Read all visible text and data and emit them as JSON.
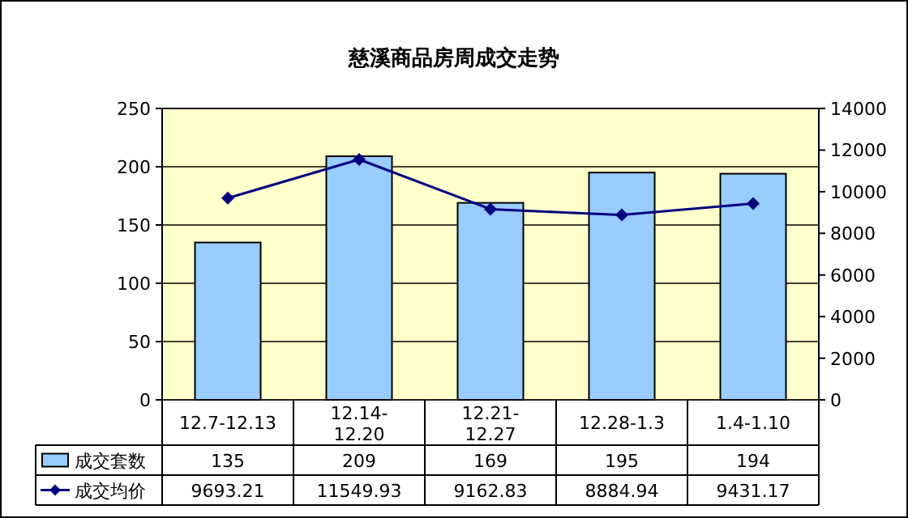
{
  "chart_data": {
    "type": "bar",
    "title": "慈溪商品房周成交走势",
    "categories": [
      "12.7-12.13",
      "12.14-12.20",
      "12.21-12.27",
      "12.28-1.3",
      "1.4-1.10"
    ],
    "series": [
      {
        "name": "成交套数",
        "color": "#99ccff",
        "values": [
          135,
          209,
          169,
          195,
          194
        ]
      },
      {
        "name": "成交均价",
        "type": "line",
        "axis": "y2",
        "color": "#000080",
        "marker": "diamond",
        "values": [
          9693.21,
          11549.93,
          9162.83,
          8884.94,
          9431.17
        ]
      }
    ],
    "ylim": [
      0,
      250
    ],
    "yticks": [
      0,
      50,
      100,
      150,
      200,
      250
    ],
    "y2lim": [
      0,
      14000
    ],
    "y2ticks": [
      0,
      2000,
      4000,
      6000,
      8000,
      10000,
      12000,
      14000
    ],
    "grid": "y",
    "data_labels": true,
    "legend": "bottom"
  }
}
